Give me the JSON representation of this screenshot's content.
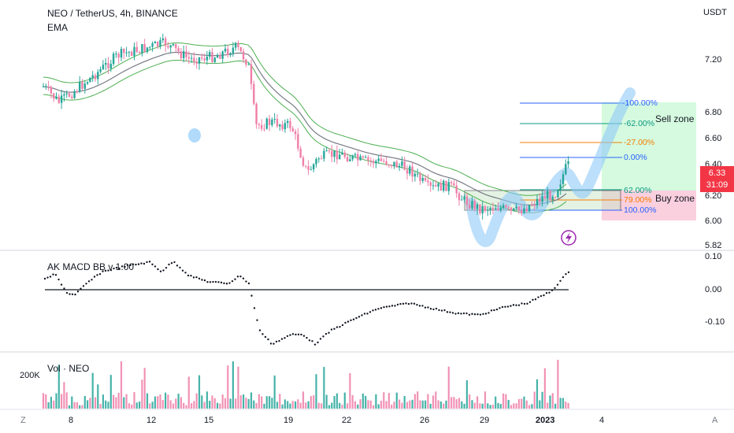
{
  "header": {
    "symbol_title": "NEO / TetherUS, 4h, BINANCE",
    "indicator_ema": "EMA",
    "currency": "USDT"
  },
  "price_axis": {
    "ticks": [
      "7.20",
      "6.80",
      "6.60",
      "6.40",
      "6.20",
      "6.00",
      "5.82"
    ],
    "current_price": "6.33",
    "countdown": "31:09"
  },
  "fib_levels": [
    {
      "label": "-100.00%",
      "color": "#2962ff"
    },
    {
      "label": "-62.00%",
      "color": "#089981"
    },
    {
      "label": "-27.00%",
      "color": "#f57c00"
    },
    {
      "label": "0.00%",
      "color": "#2962ff"
    },
    {
      "label": "62.00%",
      "color": "#089981"
    },
    {
      "label": "79.00%",
      "color": "#f57c00"
    },
    {
      "label": "100.00%",
      "color": "#2962ff"
    }
  ],
  "zones": {
    "sell": "Sell zone",
    "buy": "Buy zone"
  },
  "macd": {
    "title": "AK MACD BB v 1.00",
    "ticks": [
      "0.10",
      "0.00",
      "-0.10"
    ]
  },
  "volume": {
    "title": "Vol · NEO",
    "tick": "200K"
  },
  "time_axis": {
    "labels": [
      "8",
      "12",
      "15",
      "19",
      "22",
      "26",
      "29",
      "2023",
      "4"
    ],
    "left_button": "Z",
    "right_button": "A"
  },
  "colors": {
    "up": "#26a69a",
    "down": "#ef5350",
    "bull_candle": "#ef7fa8",
    "ema": "#787b86",
    "ema_band": "#4caf50",
    "sell_zone": "#b9f6ca",
    "buy_zone": "#f8bbd0",
    "drawing": "#90caf9"
  }
}
